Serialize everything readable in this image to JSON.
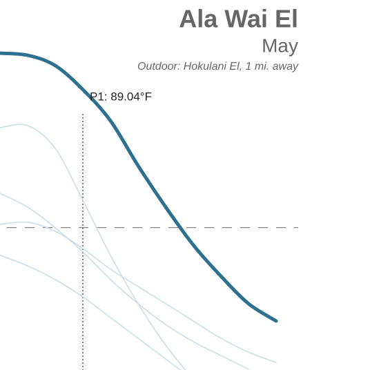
{
  "chart_data": {
    "type": "line",
    "title": "Ala Wai El",
    "subtitle": "May",
    "caption": "Outdoor: Hokulani El, 1 mi. away",
    "annotation": "P1: 89.04°F",
    "marker_x": 3,
    "threshold": 77.7,
    "x": [
      0,
      1,
      2,
      3,
      4,
      5,
      6,
      7,
      8,
      9,
      10
    ],
    "xlim": [
      0,
      13.4
    ],
    "ylim": [
      66,
      96.4
    ],
    "series": [
      {
        "color": "#c9dde5",
        "values": [
          85.91,
          86.08,
          84.21,
          79.95,
          75.42,
          71.45,
          68.04,
          65.21,
          null,
          null,
          null
        ]
      },
      {
        "color": "#c9dde5",
        "values": [
          80.52,
          79.39,
          77.68,
          75.7,
          73.43,
          71.45,
          69.74,
          68.33,
          67.19,
          66.06,
          null
        ]
      },
      {
        "color": "#c9dde5",
        "values": [
          77.97,
          78.14,
          77.4,
          75.98,
          74.28,
          72.86,
          71.45,
          70.03,
          68.61,
          67.47,
          66.62
        ]
      },
      {
        "color": "#c9dde5",
        "values": [
          75.42,
          74.56,
          73.43,
          72.01,
          70.31,
          68.61,
          66.91,
          65.21,
          null,
          null,
          null
        ]
      },
      {
        "color": "#2e7090",
        "values": [
          92.03,
          91.86,
          91.01,
          89.04,
          86.48,
          82.79,
          79.39,
          76.27,
          73.71,
          71.45,
          70.03
        ]
      }
    ]
  }
}
